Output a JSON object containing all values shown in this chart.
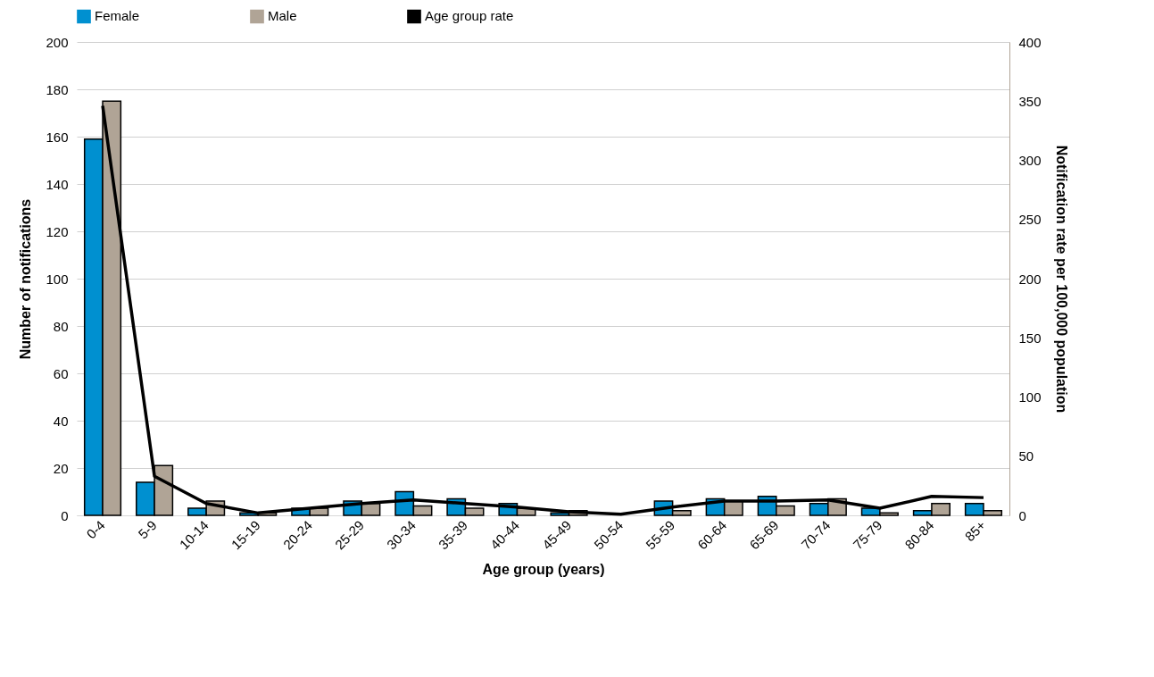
{
  "chart_data": {
    "type": "bar",
    "xlabel": "Age group (years)",
    "ylabel": "Number of notifications",
    "y2label": "Notification rate per 100,000 population",
    "categories": [
      "0-4",
      "5-9",
      "10-14",
      "15-19",
      "20-24",
      "25-29",
      "30-34",
      "35-39",
      "40-44",
      "45-49",
      "50-54",
      "55-59",
      "60-64",
      "65-69",
      "70-74",
      "75-79",
      "80-84",
      "85+"
    ],
    "series": [
      {
        "name": "Female",
        "color": "#0090d0",
        "values": [
          159,
          14,
          3,
          1,
          3,
          6,
          10,
          7,
          5,
          1,
          0,
          6,
          7,
          8,
          5,
          3,
          2,
          5
        ]
      },
      {
        "name": "Male",
        "color": "#b0a496",
        "values": [
          175,
          21,
          6,
          1,
          3,
          5,
          4,
          3,
          3,
          2,
          0,
          2,
          6,
          4,
          7,
          1,
          5,
          2
        ]
      },
      {
        "name": "Age group rate",
        "type": "line",
        "axis": "y2",
        "color": "#000000",
        "values": [
          346,
          33,
          10,
          2,
          6,
          10,
          13,
          10,
          7,
          3,
          1,
          7,
          12,
          12,
          13,
          6,
          16,
          15
        ]
      }
    ],
    "ylim": [
      0,
      200
    ],
    "yticks": [
      0,
      20,
      40,
      60,
      80,
      100,
      120,
      140,
      160,
      180,
      200
    ],
    "y2lim": [
      0,
      400
    ],
    "y2ticks": [
      0,
      50,
      100,
      150,
      200,
      250,
      300,
      350,
      400
    ],
    "grid": "y",
    "legend": "top"
  }
}
